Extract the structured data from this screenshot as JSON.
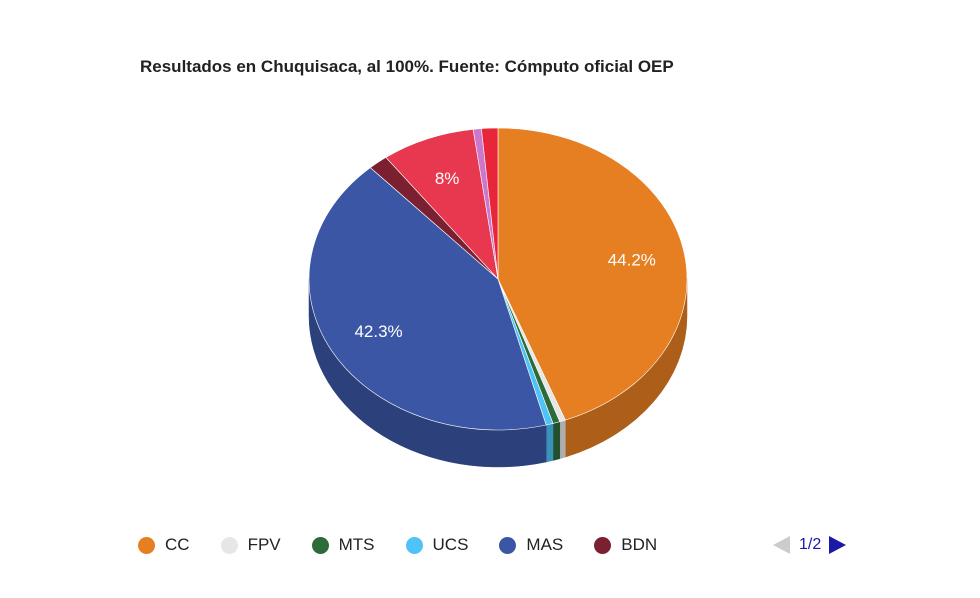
{
  "title": "Resultados en Chuquisaca, al 100%. Fuente: Cómputo oficial OEP",
  "chart_data": {
    "type": "pie",
    "is_3d": true,
    "title": "Resultados en Chuquisaca, al 100%. Fuente: Cómputo oficial OEP",
    "slices": [
      {
        "name": "CC",
        "value": 44.2,
        "color": "#e67e22",
        "label": "44.2%"
      },
      {
        "name": "FPV",
        "value": 0.5,
        "color": "#e6e6e6",
        "label": ""
      },
      {
        "name": "MTS",
        "value": 0.6,
        "color": "#2e6b3a",
        "label": ""
      },
      {
        "name": "UCS",
        "value": 0.6,
        "color": "#4fc3f7",
        "label": ""
      },
      {
        "name": "MAS",
        "value": 42.3,
        "color": "#3b56a5",
        "label": "42.3%"
      },
      {
        "name": "BDN",
        "value": 1.7,
        "color": "#7b2030",
        "label": ""
      },
      {
        "name": "",
        "value": 8.0,
        "color": "#e8384f",
        "label": "8%"
      },
      {
        "name": "",
        "value": 0.7,
        "color": "#cc77cc",
        "label": ""
      },
      {
        "name": "",
        "value": 1.4,
        "color": "#e8263a",
        "label": ""
      }
    ],
    "legend": {
      "position": "bottom",
      "visible_entries": [
        "CC",
        "FPV",
        "MTS",
        "UCS",
        "MAS",
        "BDN"
      ]
    }
  },
  "legend_items": [
    {
      "label": "CC",
      "color": "#e67e22"
    },
    {
      "label": "FPV",
      "color": "#e6e6e6"
    },
    {
      "label": "MTS",
      "color": "#2e6b3a"
    },
    {
      "label": "UCS",
      "color": "#4fc3f7"
    },
    {
      "label": "MAS",
      "color": "#3b56a5"
    },
    {
      "label": "BDN",
      "color": "#7b2030"
    }
  ],
  "pager": {
    "text": "1/2"
  }
}
